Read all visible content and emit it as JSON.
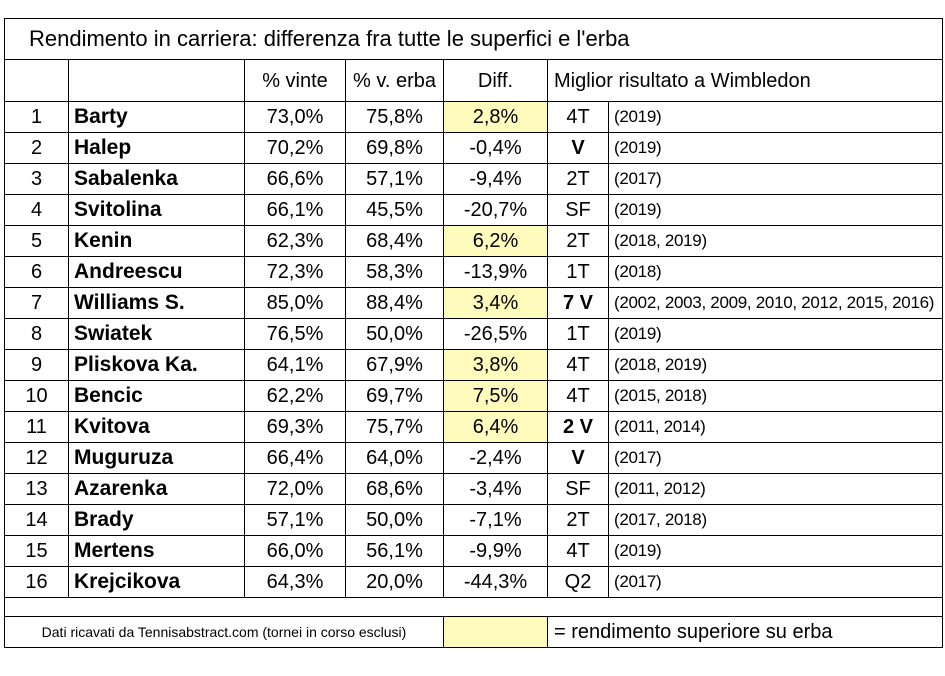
{
  "title": "Rendimento in carriera: differenza fra tutte le superfici e l'erba",
  "headers": {
    "rank": "",
    "name": "",
    "pct_won": "% vinte",
    "pct_grass": "% v. erba",
    "diff": "Diff.",
    "best_wimbledon": "Miglior risultato a Wimbledon"
  },
  "rows": [
    {
      "rank": "1",
      "name": "Barty",
      "pct_won": "73,0%",
      "pct_grass": "75,8%",
      "diff": "2,8%",
      "better_on_grass": true,
      "result": "4T",
      "result_bold": false,
      "years": "(2019)"
    },
    {
      "rank": "2",
      "name": "Halep",
      "pct_won": "70,2%",
      "pct_grass": "69,8%",
      "diff": "-0,4%",
      "better_on_grass": false,
      "result": "V",
      "result_bold": true,
      "years": "(2019)"
    },
    {
      "rank": "3",
      "name": "Sabalenka",
      "pct_won": "66,6%",
      "pct_grass": "57,1%",
      "diff": "-9,4%",
      "better_on_grass": false,
      "result": "2T",
      "result_bold": false,
      "years": "(2017)"
    },
    {
      "rank": "4",
      "name": "Svitolina",
      "pct_won": "66,1%",
      "pct_grass": "45,5%",
      "diff": "-20,7%",
      "better_on_grass": false,
      "result": "SF",
      "result_bold": false,
      "years": "(2019)"
    },
    {
      "rank": "5",
      "name": "Kenin",
      "pct_won": "62,3%",
      "pct_grass": "68,4%",
      "diff": "6,2%",
      "better_on_grass": true,
      "result": "2T",
      "result_bold": false,
      "years": "(2018, 2019)"
    },
    {
      "rank": "6",
      "name": "Andreescu",
      "pct_won": "72,3%",
      "pct_grass": "58,3%",
      "diff": "-13,9%",
      "better_on_grass": false,
      "result": "1T",
      "result_bold": false,
      "years": "(2018)"
    },
    {
      "rank": "7",
      "name": "Williams S.",
      "pct_won": "85,0%",
      "pct_grass": "88,4%",
      "diff": "3,4%",
      "better_on_grass": true,
      "result": "7 V",
      "result_bold": true,
      "years": "(2002, 2003, 2009, 2010, 2012, 2015, 2016)"
    },
    {
      "rank": "8",
      "name": "Swiatek",
      "pct_won": "76,5%",
      "pct_grass": "50,0%",
      "diff": "-26,5%",
      "better_on_grass": false,
      "result": "1T",
      "result_bold": false,
      "years": "(2019)"
    },
    {
      "rank": "9",
      "name": "Pliskova Ka.",
      "pct_won": "64,1%",
      "pct_grass": "67,9%",
      "diff": "3,8%",
      "better_on_grass": true,
      "result": "4T",
      "result_bold": false,
      "years": "(2018, 2019)"
    },
    {
      "rank": "10",
      "name": "Bencic",
      "pct_won": "62,2%",
      "pct_grass": "69,7%",
      "diff": "7,5%",
      "better_on_grass": true,
      "result": "4T",
      "result_bold": false,
      "years": "(2015, 2018)"
    },
    {
      "rank": "11",
      "name": "Kvitova",
      "pct_won": "69,3%",
      "pct_grass": "75,7%",
      "diff": "6,4%",
      "better_on_grass": true,
      "result": "2 V",
      "result_bold": true,
      "years": "(2011, 2014)"
    },
    {
      "rank": "12",
      "name": "Muguruza",
      "pct_won": "66,4%",
      "pct_grass": "64,0%",
      "diff": "-2,4%",
      "better_on_grass": false,
      "result": "V",
      "result_bold": true,
      "years": "(2017)"
    },
    {
      "rank": "13",
      "name": "Azarenka",
      "pct_won": "72,0%",
      "pct_grass": "68,6%",
      "diff": "-3,4%",
      "better_on_grass": false,
      "result": "SF",
      "result_bold": false,
      "years": "(2011, 2012)"
    },
    {
      "rank": "14",
      "name": "Brady",
      "pct_won": "57,1%",
      "pct_grass": "50,0%",
      "diff": "-7,1%",
      "better_on_grass": false,
      "result": "2T",
      "result_bold": false,
      "years": "(2017, 2018)"
    },
    {
      "rank": "15",
      "name": "Mertens",
      "pct_won": "66,0%",
      "pct_grass": "56,1%",
      "diff": "-9,9%",
      "better_on_grass": false,
      "result": "4T",
      "result_bold": false,
      "years": "(2019)"
    },
    {
      "rank": "16",
      "name": "Krejcikova",
      "pct_won": "64,3%",
      "pct_grass": "20,0%",
      "diff": "-44,3%",
      "better_on_grass": false,
      "result": "Q2",
      "result_bold": false,
      "years": "(2017)"
    }
  ],
  "footer": {
    "source": "Dati ricavati da Tennisabstract.com (tornei in corso esclusi)",
    "legend": "= rendimento superiore su erba"
  },
  "colors": {
    "highlight": "#fffbbd",
    "border": "#000000"
  }
}
